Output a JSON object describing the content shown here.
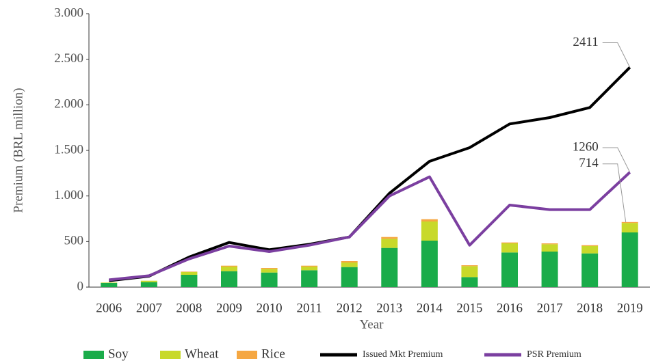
{
  "chart_data": {
    "type": "bar-line",
    "categories": [
      "2006",
      "2007",
      "2008",
      "2009",
      "2010",
      "2011",
      "2012",
      "2013",
      "2014",
      "2015",
      "2016",
      "2017",
      "2018",
      "2019"
    ],
    "y_label": "Premium (BRL million)",
    "x_label": "Year",
    "ylim": [
      0,
      3000
    ],
    "yticks": [
      0,
      500,
      {
        "value": 1000,
        "label": "1.000"
      },
      {
        "value": 1500,
        "label": "1.500"
      },
      {
        "value": 2000,
        "label": "2.000"
      },
      {
        "value": 2500,
        "label": "2.500"
      },
      {
        "value": 3000,
        "label": "3.000"
      }
    ],
    "series": [
      {
        "name": "Soy",
        "kind": "bar",
        "color": "#1aac4a",
        "values": [
          45,
          55,
          135,
          175,
          160,
          185,
          220,
          430,
          510,
          110,
          380,
          390,
          370,
          600
        ]
      },
      {
        "name": "Wheat",
        "kind": "bar",
        "color": "#c8d92a",
        "values": [
          5,
          15,
          30,
          50,
          40,
          40,
          50,
          100,
          210,
          120,
          100,
          80,
          80,
          104
        ]
      },
      {
        "name": "Rice",
        "kind": "bar",
        "color": "#f5a742",
        "values": [
          0,
          0,
          5,
          10,
          10,
          10,
          15,
          20,
          25,
          10,
          10,
          10,
          10,
          10
        ]
      },
      {
        "name": "Issued Mkt Premium",
        "kind": "line",
        "color": "#000000",
        "values": [
          70,
          120,
          330,
          490,
          410,
          470,
          550,
          1030,
          1380,
          1530,
          1790,
          1860,
          1970,
          2411
        ],
        "value_labels": [
          null,
          null,
          null,
          null,
          null,
          null,
          null,
          null,
          null,
          null,
          null,
          null,
          null,
          "2411"
        ]
      },
      {
        "name": "PSR Premium",
        "kind": "line",
        "color": "#7b3fa0",
        "values": [
          80,
          125,
          310,
          450,
          390,
          460,
          550,
          1000,
          1210,
          460,
          900,
          850,
          850,
          1260
        ],
        "value_labels": [
          null,
          null,
          null,
          null,
          null,
          null,
          null,
          null,
          null,
          null,
          null,
          null,
          null,
          "1260"
        ]
      }
    ],
    "annotations": [
      {
        "label": "714",
        "value": 714
      }
    ]
  }
}
